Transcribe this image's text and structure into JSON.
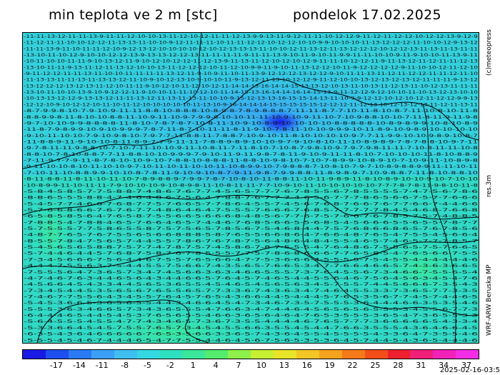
{
  "header": {
    "title": "min teplota ve 2 m [stc]",
    "date": "pondelok 17.02.2025"
  },
  "side_labels": {
    "copyright": "(c)meteopress",
    "resolution": "res.3m",
    "model": "WRF-ARW Beruska MP"
  },
  "legend": {
    "tick_labels": [
      "-17",
      "-14",
      "-11",
      "-8",
      "-5",
      "-2",
      "1",
      "4",
      "7",
      "10",
      "13",
      "16",
      "19",
      "22",
      "25",
      "28",
      "31",
      "34",
      "37"
    ],
    "colors": [
      "#1a1ae6",
      "#1f4ff0",
      "#2a7af5",
      "#3aa0f5",
      "#3fbff0",
      "#34d8e2",
      "#2fe0c0",
      "#3ce69a",
      "#53ec6e",
      "#8ef04a",
      "#c6ef32",
      "#e8e429",
      "#f2c624",
      "#f5a21e",
      "#f57a1a",
      "#f24e1a",
      "#ee1f2f",
      "#f01f78",
      "#f222b8",
      "#f42de6"
    ]
  },
  "timestamp": "2025-02-16-03:5"
}
